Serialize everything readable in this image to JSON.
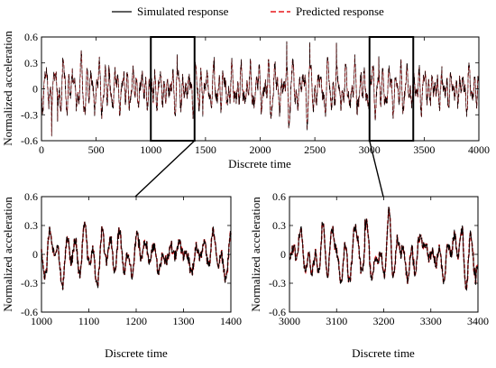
{
  "legend": {
    "simulated": "Simulated response",
    "predicted": "Predicted response"
  },
  "colors": {
    "simulated": "#000000",
    "predicted": "#e8181c",
    "axis": "#000000"
  },
  "chart_data": [
    {
      "type": "line",
      "panel": "top",
      "xlabel": "Discrete time",
      "ylabel": "Normalized acceleration",
      "xlim": [
        0,
        4000
      ],
      "ylim": [
        -0.6,
        0.6
      ],
      "xticks": [
        0,
        500,
        1000,
        1500,
        2000,
        2500,
        3000,
        3500,
        4000
      ],
      "yticks": [
        -0.6,
        -0.3,
        0,
        0.3,
        0.6
      ],
      "ytick_labels": [
        "-0.6",
        "-0.3",
        "0",
        "0.3",
        "0.6"
      ],
      "series": [
        {
          "name": "Simulated response",
          "style": "solid"
        },
        {
          "name": "Predicted response",
          "style": "dashed"
        }
      ],
      "zoom_boxes": [
        {
          "x": [
            1000,
            1400
          ],
          "y": [
            -0.6,
            0.6
          ]
        },
        {
          "x": [
            3000,
            3400
          ],
          "y": [
            -0.6,
            0.6
          ]
        }
      ]
    },
    {
      "type": "line",
      "panel": "bottom-left",
      "xlabel": "Discrete time",
      "ylabel": "Normalized acceleration",
      "xlim": [
        1000,
        1400
      ],
      "ylim": [
        -0.6,
        0.6
      ],
      "xticks": [
        1000,
        1100,
        1200,
        1300,
        1400
      ],
      "yticks": [
        -0.6,
        -0.3,
        0,
        0.3,
        0.6
      ],
      "ytick_labels": [
        "-0.6",
        "-0.3",
        "0",
        "0.3",
        "0.6"
      ],
      "series": [
        {
          "name": "Simulated response",
          "style": "solid"
        },
        {
          "name": "Predicted response",
          "style": "dashed"
        }
      ]
    },
    {
      "type": "line",
      "panel": "bottom-right",
      "xlabel": "Discrete time",
      "ylabel": "Normalized acceleration",
      "xlim": [
        3000,
        3400
      ],
      "ylim": [
        -0.6,
        0.6
      ],
      "xticks": [
        3000,
        3100,
        3200,
        3300,
        3400
      ],
      "yticks": [
        -0.6,
        -0.3,
        0,
        0.3,
        0.6
      ],
      "ytick_labels": [
        "-0.6",
        "-0.3",
        "0",
        "0.3",
        "0.6"
      ],
      "series": [
        {
          "name": "Simulated response",
          "style": "solid"
        },
        {
          "name": "Predicted response",
          "style": "dashed"
        }
      ]
    }
  ]
}
